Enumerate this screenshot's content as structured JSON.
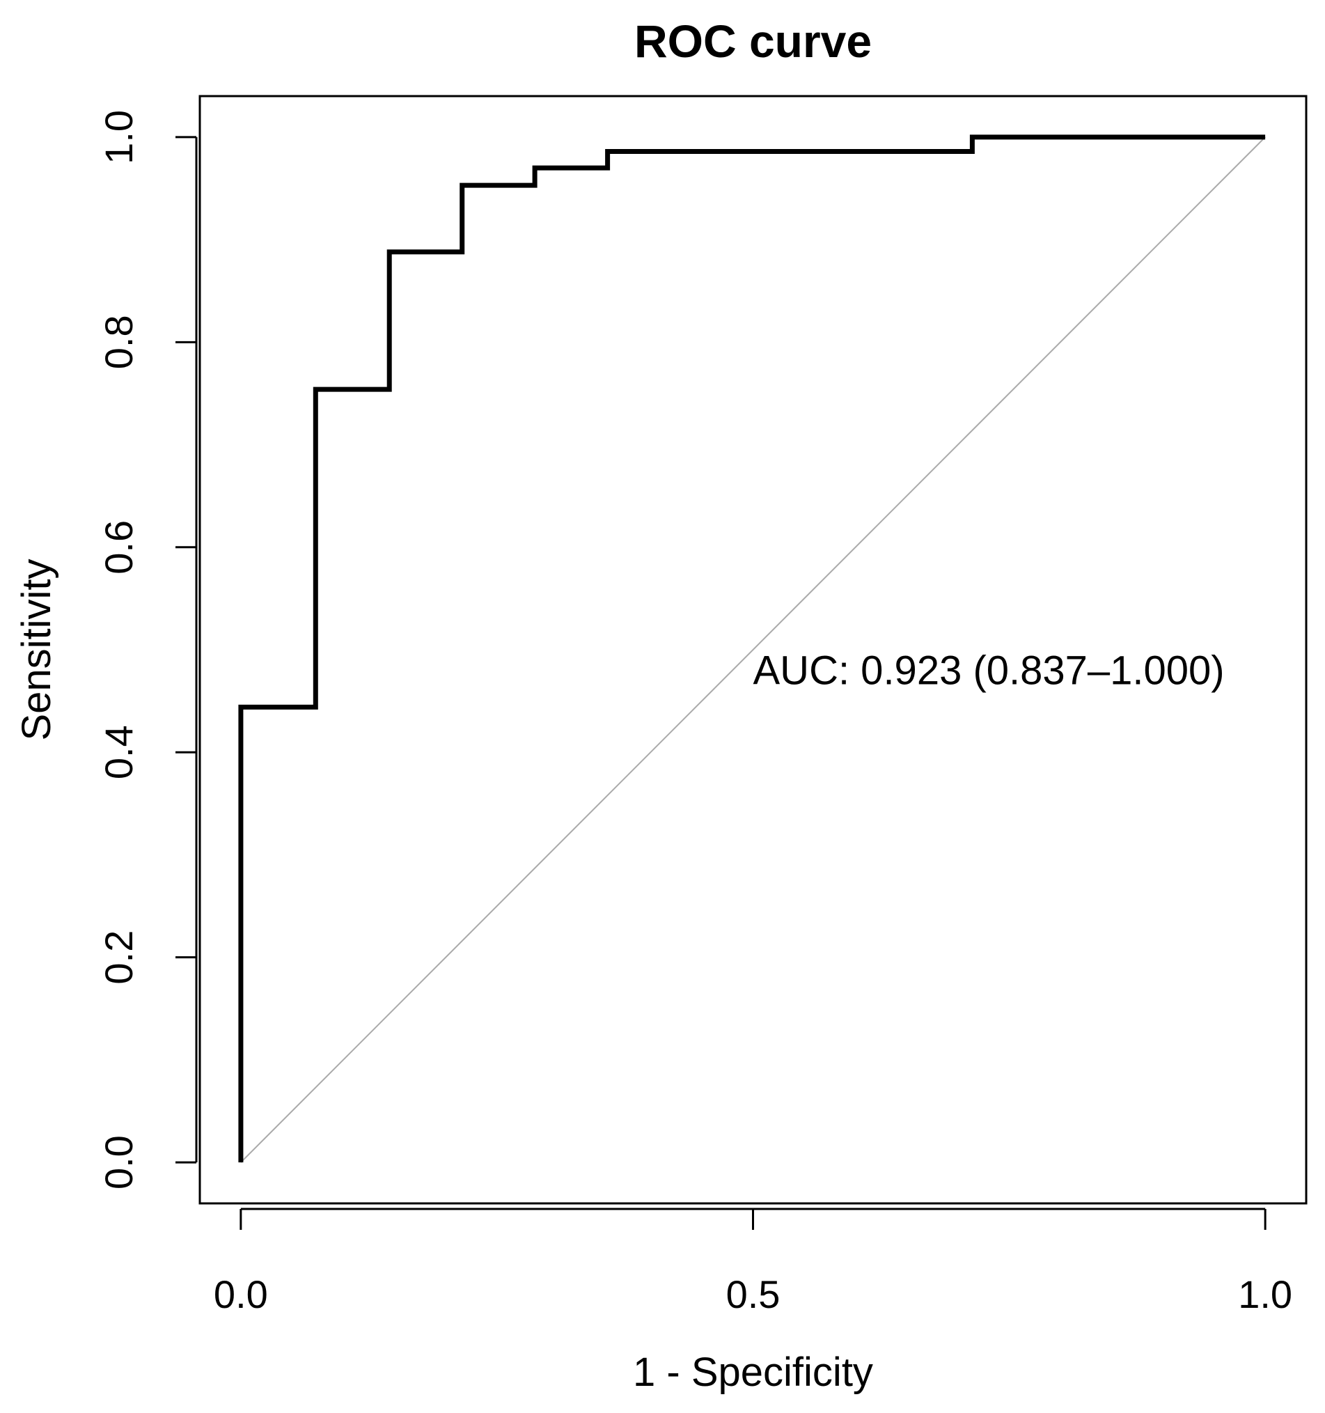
{
  "chart_data": {
    "type": "line",
    "title": "ROC curve",
    "xlabel": "1 - Specificity",
    "ylabel": "Sensitivity",
    "xlim": [
      -0.04,
      1.04
    ],
    "ylim": [
      -0.04,
      1.04
    ],
    "x_ticks": [
      {
        "value": 0.0,
        "label": "0.0"
      },
      {
        "value": 0.5,
        "label": "0.5"
      },
      {
        "value": 1.0,
        "label": "1.0"
      }
    ],
    "y_ticks": [
      {
        "value": 0.0,
        "label": "0.0"
      },
      {
        "value": 0.2,
        "label": "0.2"
      },
      {
        "value": 0.4,
        "label": "0.4"
      },
      {
        "value": 0.6,
        "label": "0.6"
      },
      {
        "value": 0.8,
        "label": "0.8"
      },
      {
        "value": 1.0,
        "label": "1.0"
      }
    ],
    "reference_line": {
      "x": [
        0,
        1
      ],
      "y": [
        0,
        1
      ],
      "color": "#aaaaaa"
    },
    "series": [
      {
        "name": "ROC",
        "color": "#000000",
        "x": [
          0.0,
          0.0,
          0.073,
          0.073,
          0.145,
          0.145,
          0.216,
          0.216,
          0.287,
          0.287,
          0.358,
          0.358,
          0.714,
          0.714,
          1.0
        ],
        "y": [
          0.0,
          0.444,
          0.444,
          0.754,
          0.754,
          0.888,
          0.888,
          0.953,
          0.953,
          0.97,
          0.97,
          0.986,
          0.986,
          1.0,
          1.0
        ]
      }
    ],
    "annotation": {
      "text": "AUC: 0.923 (0.837–1.000)",
      "x": 0.5,
      "y": 0.48
    },
    "grid": false,
    "legend": "none"
  }
}
